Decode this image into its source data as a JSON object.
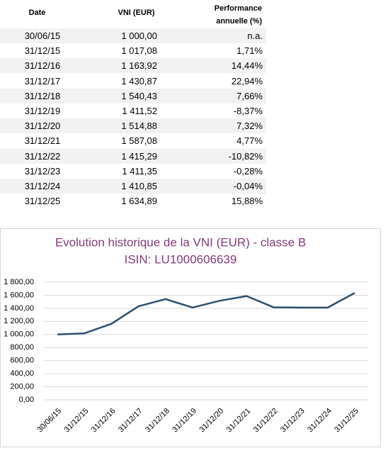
{
  "table": {
    "header": [
      "Date",
      "VNI (EUR)",
      "Performance annuelle (%)"
    ],
    "rows": [
      [
        "30/06/15",
        "1 000,00",
        "n.a."
      ],
      [
        "31/12/15",
        "1 017,08",
        "1,71%"
      ],
      [
        "31/12/16",
        "1 163,92",
        "14,44%"
      ],
      [
        "31/12/17",
        "1 430,87",
        "22,94%"
      ],
      [
        "31/12/18",
        "1 540,43",
        "7,66%"
      ],
      [
        "31/12/19",
        "1 411,52",
        "-8,37%"
      ],
      [
        "31/12/20",
        "1 514,88",
        "7,32%"
      ],
      [
        "31/12/21",
        "1 587,08",
        "4,77%"
      ],
      [
        "31/12/22",
        "1 415,29",
        "-10,82%"
      ],
      [
        "31/12/23",
        "1 411,35",
        "-0,28%"
      ],
      [
        "31/12/24",
        "1 410,85",
        "-0,04%"
      ],
      [
        "31/12/25",
        "1 634,89",
        "15,88%"
      ]
    ]
  },
  "chart_data": {
    "type": "line",
    "title": "Evolution historique de la VNI (EUR) - classe B",
    "subtitle": "ISIN: LU1000606639",
    "categories": [
      "30/06/15",
      "31/12/15",
      "31/12/16",
      "31/12/17",
      "31/12/18",
      "31/12/19",
      "31/12/20",
      "31/12/21",
      "31/12/22",
      "31/12/23",
      "31/12/24",
      "31/12/25"
    ],
    "values": [
      1000,
      1017.08,
      1163.92,
      1430.87,
      1540.43,
      1411.52,
      1514.88,
      1587.08,
      1415.29,
      1411.35,
      1410.85,
      1634.89
    ],
    "color": "#2d4f6e",
    "ylim": [
      0,
      1800
    ],
    "yticks": [
      {
        "value": 0,
        "label": "0,00"
      },
      {
        "value": 200,
        "label": "200,00"
      },
      {
        "value": 400,
        "label": "400,00"
      },
      {
        "value": 600,
        "label": "600,00"
      },
      {
        "value": 800,
        "label": "800,00"
      },
      {
        "value": 1000,
        "label": "1 000,00"
      },
      {
        "value": 1200,
        "label": "1 200,00"
      },
      {
        "value": 1400,
        "label": "1 400,00"
      },
      {
        "value": 1600,
        "label": "1 600,00"
      },
      {
        "value": 1800,
        "label": "1 800,00"
      }
    ],
    "grid": true
  }
}
